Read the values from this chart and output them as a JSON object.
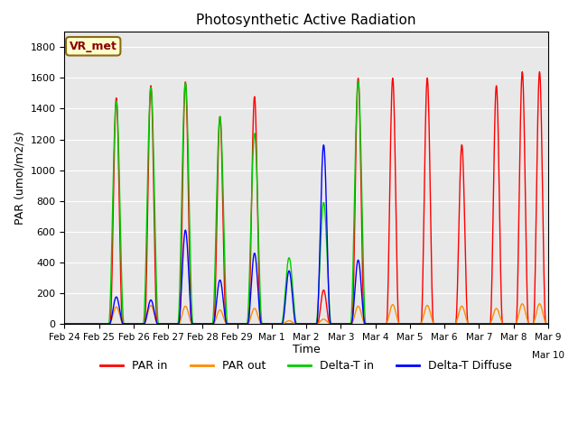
{
  "title": "Photosynthetic Active Radiation",
  "ylabel": "PAR (umol/m2/s)",
  "xlabel": "Time",
  "ylim": [
    0,
    1900
  ],
  "yticks": [
    0,
    200,
    400,
    600,
    800,
    1000,
    1200,
    1400,
    1600,
    1800
  ],
  "xlim": [
    0,
    14
  ],
  "colors": {
    "PAR_in": "#ff0000",
    "PAR_out": "#ff8c00",
    "Delta_T_in": "#00cc00",
    "Delta_T_Diffuse": "#0000ff"
  },
  "tick_positions": [
    0,
    1,
    2,
    3,
    4,
    5,
    6,
    7,
    8,
    9,
    10,
    11,
    12,
    13,
    14
  ],
  "tick_labels": [
    "Feb 24",
    "Feb 25",
    "Feb 26",
    "Feb 27",
    "Feb 28",
    "Feb 29",
    "Mar 1",
    "Mar 2",
    "Mar 3",
    "Mar 4",
    "Mar 5",
    "Mar 6",
    "Mar 7",
    "Mar 8",
    "Mar 9"
  ],
  "legend_labels": [
    "PAR in",
    "PAR out",
    "Delta-T in",
    "Delta-T Diffuse"
  ],
  "annotation_text": "VR_met",
  "background_color": "#e8e8e8",
  "linewidth": 1.0,
  "n_days": 14,
  "pts_per_day": 96
}
